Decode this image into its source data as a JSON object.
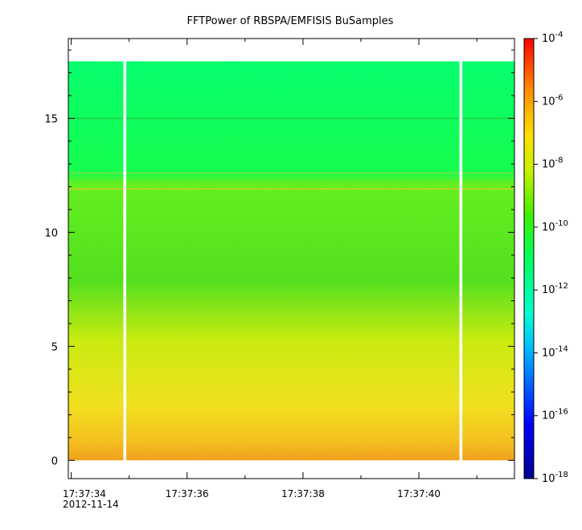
{
  "chart_data": {
    "type": "heatmap",
    "title": "FFTPower of RBSPA/EMFISIS  BuSamples",
    "x": {
      "ticks": [
        "17:37:34",
        "17:37:36",
        "17:37:38",
        "17:37:40"
      ],
      "date_label": "2012-11-14",
      "range": [
        "17:37:33.95",
        "17:37:41.65"
      ]
    },
    "y": {
      "ticks": [
        0,
        5,
        10,
        15
      ],
      "range": [
        -0.8,
        18.5
      ],
      "data_range": [
        0,
        17.5
      ]
    },
    "colorbar": {
      "scale": "log",
      "range": [
        1e-18,
        0.0001
      ],
      "tick_base": "10",
      "tick_exponents": [
        "-4",
        "-6",
        "-8",
        "-10",
        "-12",
        "-14",
        "-16",
        "-18"
      ]
    },
    "data_gaps": [
      {
        "start": "17:37:34.9",
        "end": "17:37:34.95"
      },
      {
        "start": "17:37:40.7",
        "end": "17:37:40.75"
      }
    ],
    "background_bands": [
      {
        "y_from": 12.2,
        "y_to": 17.5,
        "power": 3e-12
      },
      {
        "y_from": 7,
        "y_to": 12.2,
        "power": 1e-10
      },
      {
        "y_from": 3,
        "y_to": 7,
        "power": 3e-09
      },
      {
        "y_from": 0.3,
        "y_to": 3,
        "power": 2e-08
      },
      {
        "y_from": 0,
        "y_to": 0.3,
        "power": 1e-07
      }
    ],
    "line_features": [
      {
        "name": "",
        "y": 15.0,
        "power": 1e-10
      },
      {
        "name": "",
        "y": 11.9,
        "power": 1e-08
      },
      {
        "name": "",
        "y": 12.6,
        "power": 1e-08
      }
    ]
  }
}
